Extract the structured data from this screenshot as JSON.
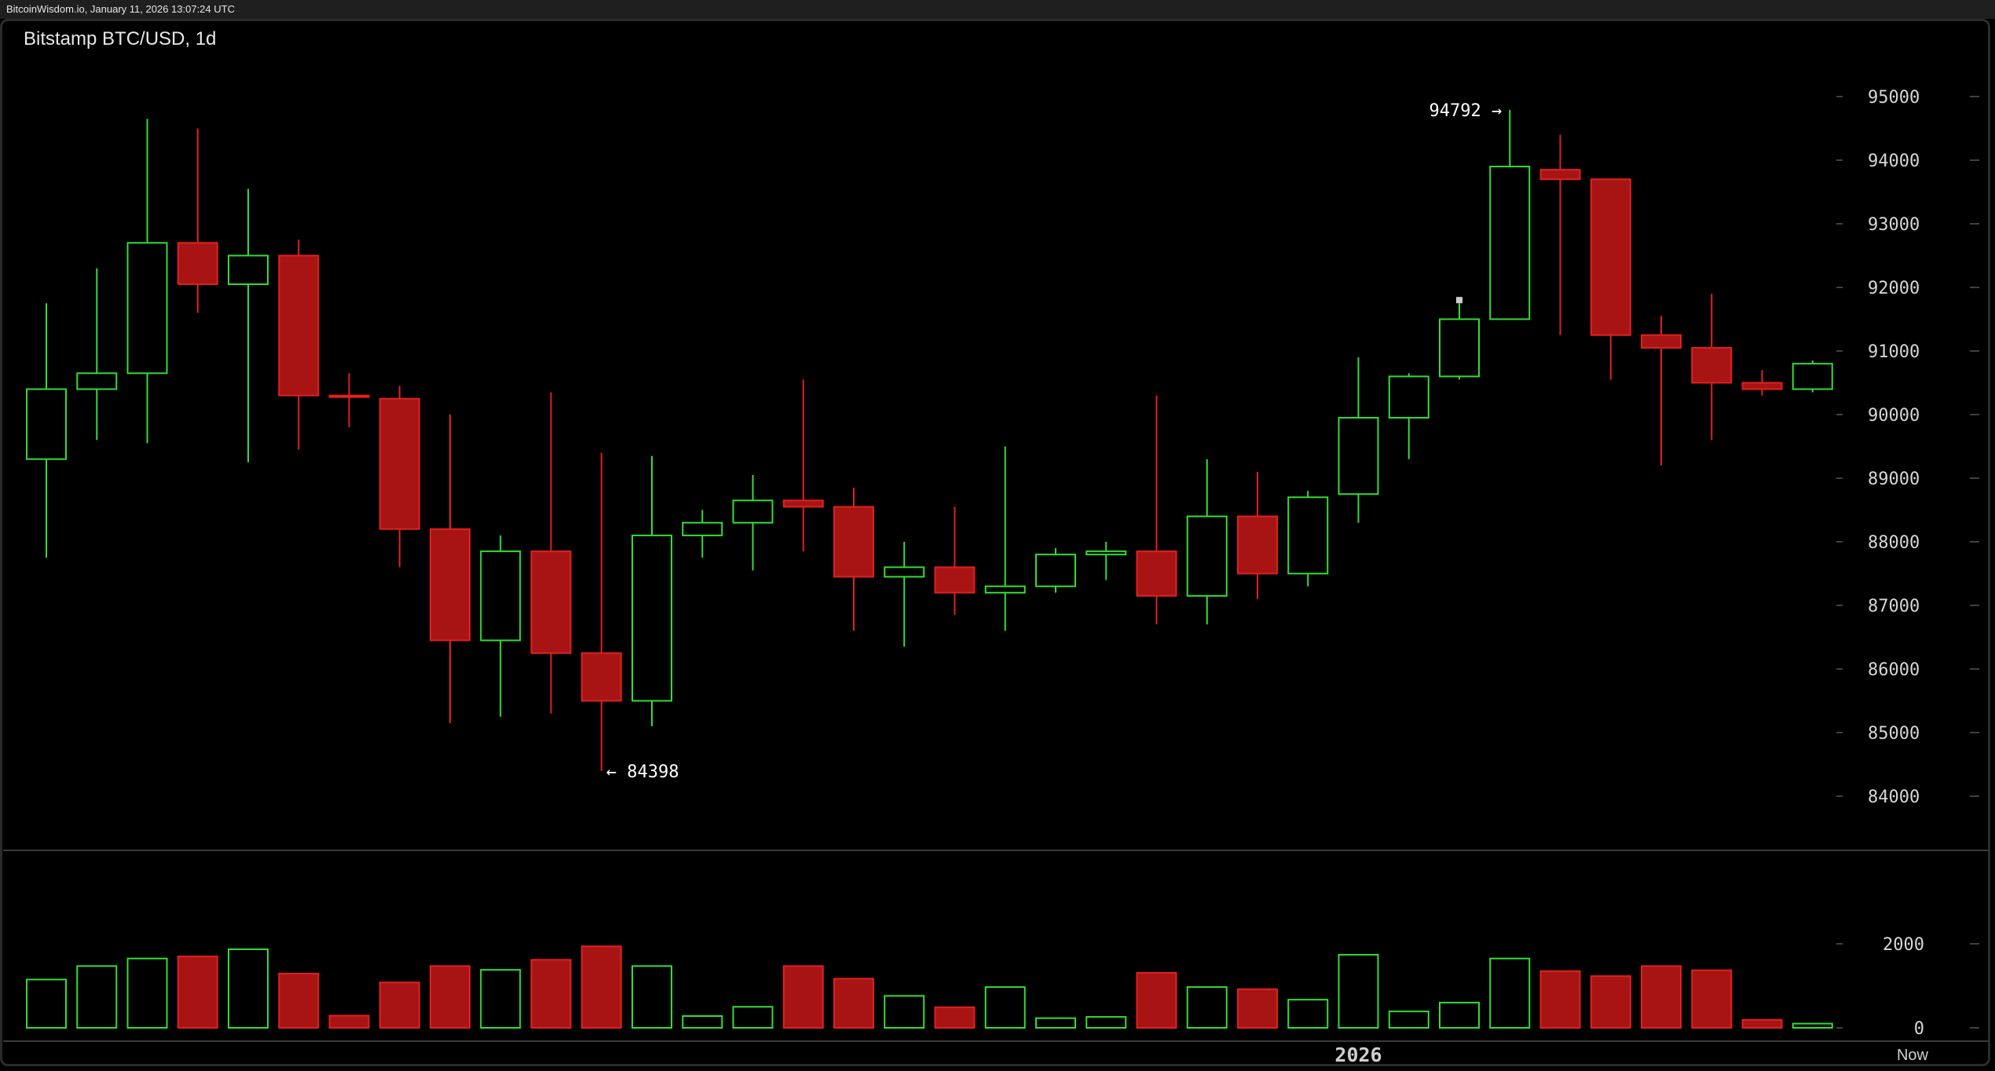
{
  "header": {
    "source_stamp": "BitcoinWisdom.io, January 11, 2026 13:07:24 UTC"
  },
  "chart_data": {
    "type": "candlestick",
    "title": "Bitstamp BTC/USD, 1d",
    "price_axis": {
      "ylim": [
        83300,
        96000
      ],
      "ticks": [
        95000,
        94000,
        93000,
        92000,
        91000,
        90000,
        89000,
        88000,
        87000,
        86000,
        85000,
        84000
      ],
      "position": "right"
    },
    "volume_axis": {
      "ylim": [
        0,
        3000
      ],
      "ticks": [
        2000,
        0
      ],
      "position": "right"
    },
    "x_labels": [
      {
        "label": "2026",
        "candle_index": 26
      }
    ],
    "now_label": "Now",
    "annotations": [
      {
        "text": "94792 →",
        "candle_index": 29,
        "price": 94792
      },
      {
        "text": "← 84398",
        "candle_index": 11,
        "price": 84398
      }
    ],
    "colors": {
      "up": "#33dd33",
      "down": "#a81414",
      "down_border": "#e02020",
      "background": "#000000"
    },
    "candles": [
      {
        "o": 89300,
        "h": 91750,
        "l": 87750,
        "c": 90400,
        "v": 1150
      },
      {
        "o": 90400,
        "h": 92300,
        "l": 89600,
        "c": 90650,
        "v": 1470
      },
      {
        "o": 90650,
        "h": 94650,
        "l": 89550,
        "c": 92700,
        "v": 1650
      },
      {
        "o": 92700,
        "h": 94500,
        "l": 91600,
        "c": 92050,
        "v": 1700
      },
      {
        "o": 92050,
        "h": 93550,
        "l": 89250,
        "c": 92500,
        "v": 1870
      },
      {
        "o": 92500,
        "h": 92750,
        "l": 89450,
        "c": 90300,
        "v": 1290
      },
      {
        "o": 90300,
        "h": 90650,
        "l": 89800,
        "c": 90280,
        "v": 290
      },
      {
        "o": 90250,
        "h": 90450,
        "l": 87600,
        "c": 88200,
        "v": 1080
      },
      {
        "o": 88200,
        "h": 90000,
        "l": 85150,
        "c": 86450,
        "v": 1470
      },
      {
        "o": 86450,
        "h": 88100,
        "l": 85250,
        "c": 87850,
        "v": 1380
      },
      {
        "o": 87850,
        "h": 90350,
        "l": 85300,
        "c": 86250,
        "v": 1620
      },
      {
        "o": 86250,
        "h": 89400,
        "l": 84398,
        "c": 85500,
        "v": 1940
      },
      {
        "o": 85500,
        "h": 89350,
        "l": 85100,
        "c": 88100,
        "v": 1470
      },
      {
        "o": 88100,
        "h": 88500,
        "l": 87750,
        "c": 88300,
        "v": 280
      },
      {
        "o": 88300,
        "h": 89050,
        "l": 87550,
        "c": 88650,
        "v": 500
      },
      {
        "o": 88650,
        "h": 90550,
        "l": 87850,
        "c": 88550,
        "v": 1470
      },
      {
        "o": 88550,
        "h": 88850,
        "l": 86600,
        "c": 87450,
        "v": 1170
      },
      {
        "o": 87450,
        "h": 88000,
        "l": 86350,
        "c": 87600,
        "v": 760
      },
      {
        "o": 87600,
        "h": 88550,
        "l": 86850,
        "c": 87200,
        "v": 490
      },
      {
        "o": 87200,
        "h": 89500,
        "l": 86600,
        "c": 87300,
        "v": 970
      },
      {
        "o": 87300,
        "h": 87900,
        "l": 87200,
        "c": 87800,
        "v": 230
      },
      {
        "o": 87800,
        "h": 88000,
        "l": 87400,
        "c": 87850,
        "v": 260
      },
      {
        "o": 87850,
        "h": 90300,
        "l": 86700,
        "c": 87150,
        "v": 1310
      },
      {
        "o": 87150,
        "h": 89300,
        "l": 86700,
        "c": 88400,
        "v": 970
      },
      {
        "o": 88400,
        "h": 89100,
        "l": 87100,
        "c": 87500,
        "v": 920
      },
      {
        "o": 87500,
        "h": 88800,
        "l": 87300,
        "c": 88700,
        "v": 670
      },
      {
        "o": 88750,
        "h": 90900,
        "l": 88300,
        "c": 89950,
        "v": 1740
      },
      {
        "o": 89950,
        "h": 90650,
        "l": 89300,
        "c": 90600,
        "v": 390
      },
      {
        "o": 90600,
        "h": 91750,
        "l": 90550,
        "c": 91500,
        "v": 600
      },
      {
        "o": 91500,
        "h": 94792,
        "l": 91500,
        "c": 93900,
        "v": 1650
      },
      {
        "o": 93850,
        "h": 94400,
        "l": 91250,
        "c": 93700,
        "v": 1350
      },
      {
        "o": 93700,
        "h": 93700,
        "l": 90550,
        "c": 91250,
        "v": 1230
      },
      {
        "o": 91250,
        "h": 91550,
        "l": 89200,
        "c": 91050,
        "v": 1470
      },
      {
        "o": 91050,
        "h": 91900,
        "l": 89600,
        "c": 90500,
        "v": 1370
      },
      {
        "o": 90500,
        "h": 90700,
        "l": 90300,
        "c": 90400,
        "v": 190
      },
      {
        "o": 90400,
        "h": 90850,
        "l": 90350,
        "c": 90800,
        "v": 100
      }
    ]
  }
}
